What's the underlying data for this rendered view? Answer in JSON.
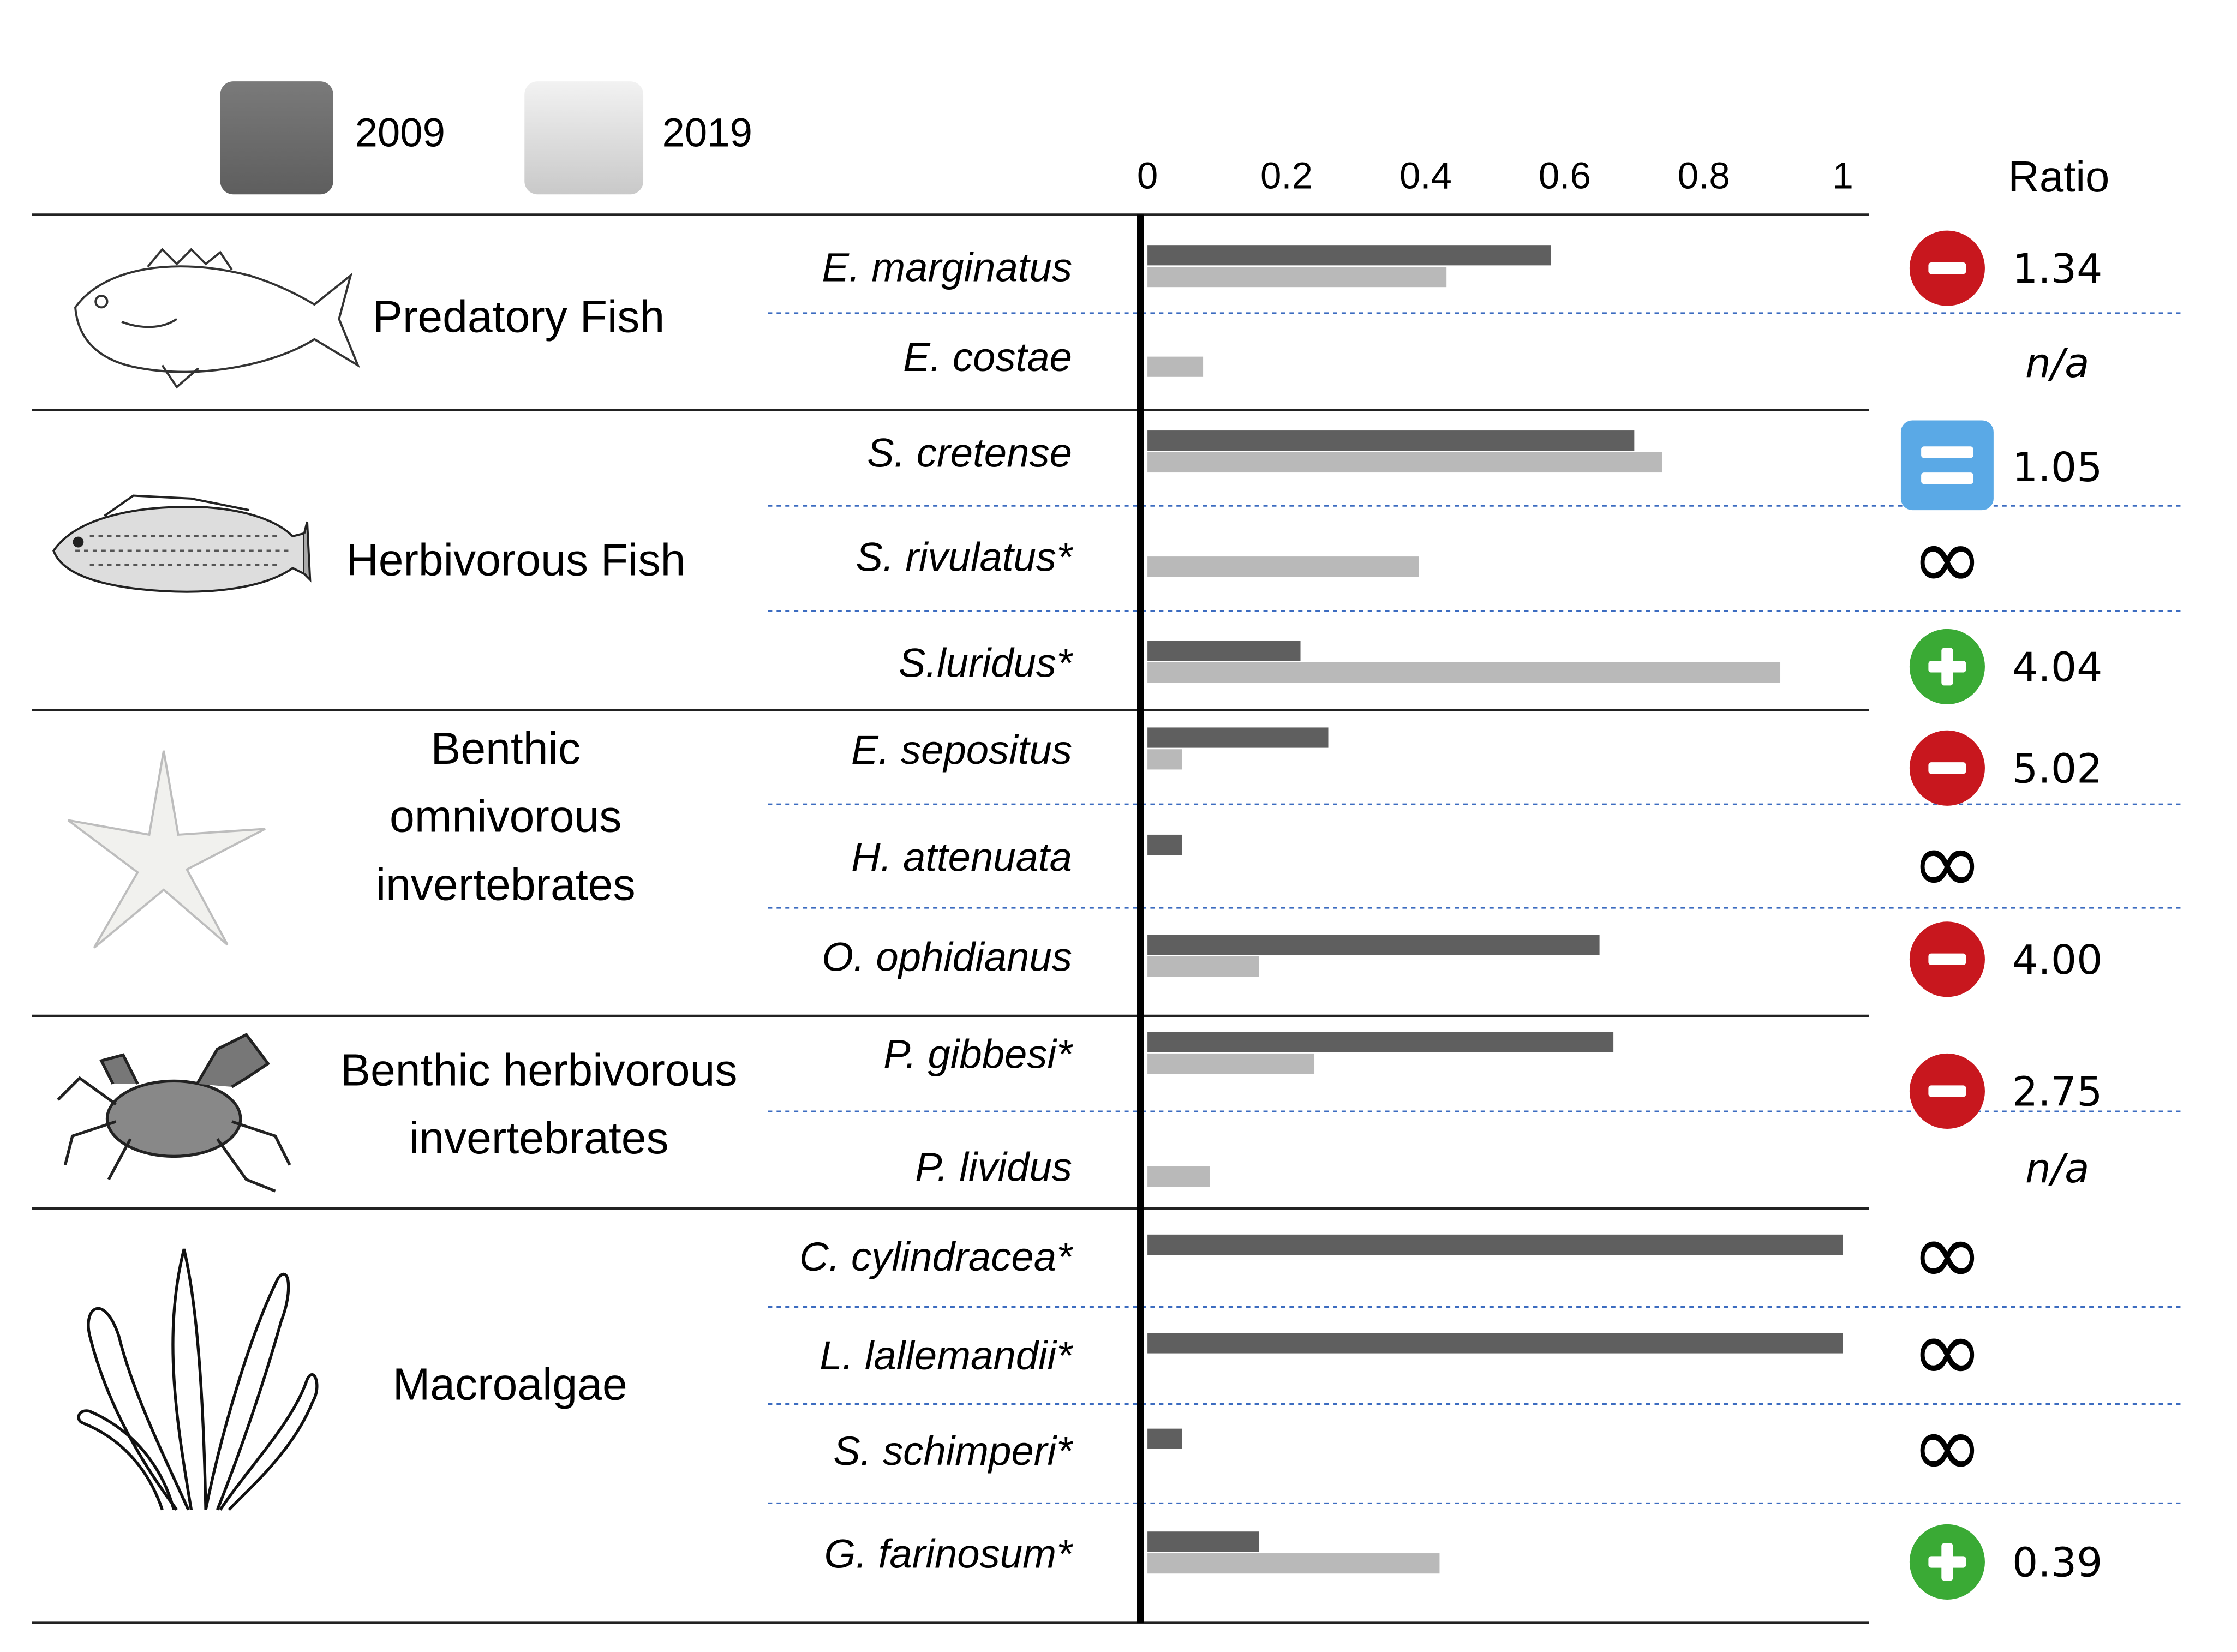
{
  "chart_data": {
    "type": "bar",
    "orientation": "horizontal",
    "xlim": [
      0,
      1
    ],
    "ticks": [
      "0",
      "0.2",
      "0.4",
      "0.6",
      "0.8",
      "1"
    ],
    "tick_values": [
      0,
      0.2,
      0.4,
      0.6,
      0.8,
      1
    ],
    "ratio_header": "Ratio",
    "legend": [
      {
        "label": "2009",
        "color": "#6b6b6b"
      },
      {
        "label": "2019",
        "color": "#bdbdbd"
      }
    ],
    "groups": [
      {
        "name": "Predatory Fish",
        "name_lines": [
          "Predatory Fish"
        ],
        "icon": "fish-icon"
      },
      {
        "name": "Herbivorous Fish",
        "name_lines": [
          "Herbivorous Fish"
        ],
        "icon": "parrotfish-icon"
      },
      {
        "name": "Benthic omnivorous invertebrates",
        "name_lines": [
          "Benthic",
          "omnivorous",
          "invertebrates"
        ],
        "icon": "starfish-icon"
      },
      {
        "name": "Benthic herbivorous invertebrates",
        "name_lines": [
          "Benthic herbivorous",
          "invertebrates"
        ],
        "icon": "crab-icon"
      },
      {
        "name": "Macroalgae",
        "name_lines": [
          "Macroalgae"
        ],
        "icon": "seaweed-icon"
      }
    ],
    "species": [
      {
        "group": 0,
        "name": "E. marginatus",
        "v2009": 0.58,
        "v2019": 0.43,
        "ratio": "1.34",
        "trend": "minus"
      },
      {
        "group": 0,
        "name": "E. costae",
        "v2009": 0,
        "v2019": 0.08,
        "ratio": "n/a",
        "trend": "na"
      },
      {
        "group": 1,
        "name": "S. cretense",
        "v2009": 0.7,
        "v2019": 0.74,
        "ratio": "1.05",
        "trend": "equal"
      },
      {
        "group": 1,
        "name": "S. rivulatus*",
        "v2009": 0,
        "v2019": 0.39,
        "ratio": "∞",
        "trend": "infinity"
      },
      {
        "group": 1,
        "name": "S.luridus*",
        "v2009": 0.22,
        "v2019": 0.91,
        "ratio": "4.04",
        "trend": "plus"
      },
      {
        "group": 2,
        "name": "E. sepositus",
        "v2009": 0.26,
        "v2019": 0.05,
        "ratio": "5.02",
        "trend": "minus"
      },
      {
        "group": 2,
        "name": "H. attenuata",
        "v2009": 0.05,
        "v2019": 0,
        "ratio": "∞",
        "trend": "infinity"
      },
      {
        "group": 2,
        "name": "O. ophidianus",
        "v2009": 0.65,
        "v2019": 0.16,
        "ratio": "4.00",
        "trend": "minus"
      },
      {
        "group": 3,
        "name": "P. gibbesi*",
        "v2009": 0.67,
        "v2019": 0.24,
        "ratio": "2.75",
        "trend": "minus"
      },
      {
        "group": 3,
        "name": "P. lividus",
        "v2009": 0,
        "v2019": 0.09,
        "ratio": "n/a",
        "trend": "na"
      },
      {
        "group": 4,
        "name": "C. cylindracea*",
        "v2009": 1.0,
        "v2019": 0,
        "ratio": "∞",
        "trend": "infinity"
      },
      {
        "group": 4,
        "name": "L. lallemandii*",
        "v2009": 1.0,
        "v2019": 0,
        "ratio": "∞",
        "trend": "infinity"
      },
      {
        "group": 4,
        "name": "S. schimperi*",
        "v2009": 0.05,
        "v2019": 0,
        "ratio": "∞",
        "trend": "infinity"
      },
      {
        "group": 4,
        "name": "G. farinosum*",
        "v2009": 0.16,
        "v2019": 0.42,
        "ratio": "0.39",
        "trend": "plus"
      }
    ],
    "colors": {
      "plus": "#3aaa35",
      "minus": "#c8171e",
      "equal": "#5aa9e6"
    }
  }
}
